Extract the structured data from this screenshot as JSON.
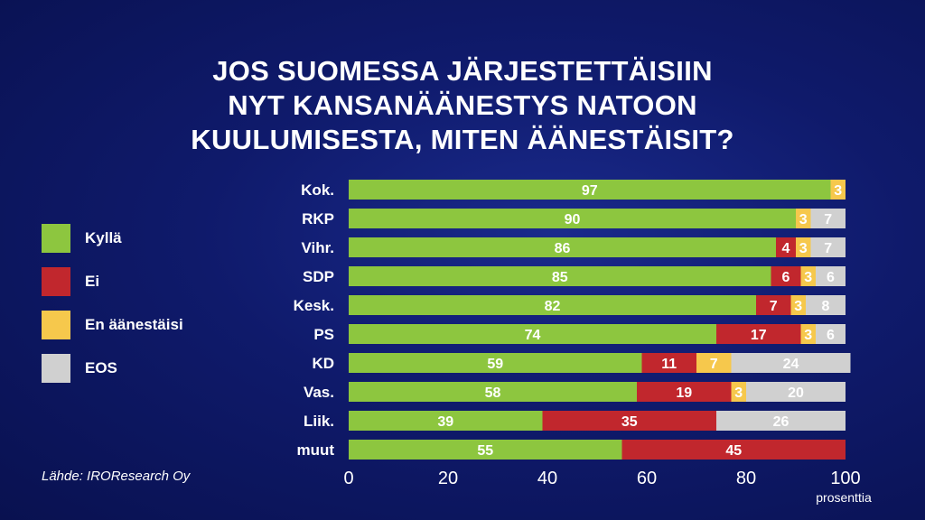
{
  "title_lines": [
    "JOS SUOMESSA JÄRJESTETTÄISIIN",
    "NYT KANSANÄÄNESTYS NATOON",
    "KUULUMISESTA, MITEN ÄÄNESTÄISIT?"
  ],
  "source": "Lähde: IROResearch Oy",
  "colors": {
    "Kyllä": "#8dc63f",
    "Ei": "#c1272d",
    "En äänestäisi": "#f6c84c",
    "EOS": "#d0d0d0"
  },
  "chart_data": {
    "type": "bar",
    "orientation": "horizontal",
    "stacked": true,
    "categories": [
      "Kok.",
      "RKP",
      "Vihr.",
      "SDP",
      "Kesk.",
      "PS",
      "KD",
      "Vas.",
      "Liik.",
      "muut"
    ],
    "series": [
      {
        "name": "Kyllä",
        "values": [
          97,
          90,
          86,
          85,
          82,
          74,
          59,
          58,
          39,
          55
        ]
      },
      {
        "name": "Ei",
        "values": [
          0,
          0,
          4,
          6,
          7,
          17,
          11,
          19,
          35,
          45
        ]
      },
      {
        "name": "En äänestäisi",
        "values": [
          3,
          3,
          3,
          3,
          3,
          3,
          7,
          3,
          0,
          0
        ]
      },
      {
        "name": "EOS",
        "values": [
          0,
          7,
          7,
          6,
          8,
          6,
          24,
          20,
          26,
          0
        ]
      }
    ],
    "xlim": [
      0,
      100
    ],
    "xticks": [
      0,
      20,
      40,
      60,
      80,
      100
    ],
    "xlabel": "prosenttia",
    "legend": "left"
  }
}
